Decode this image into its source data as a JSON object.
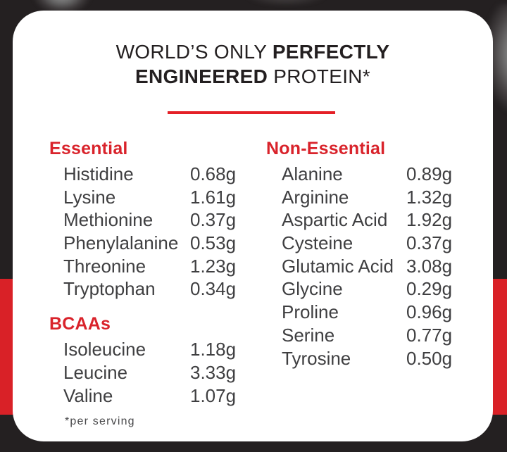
{
  "card": {
    "title": {
      "line1_regular": "WORLD’S ONLY ",
      "line1_bold": "PERFECTLY",
      "line2_bold": "ENGINEERED",
      "line2_regular": " PROTEIN*"
    },
    "sections": {
      "essential": {
        "heading": "Essential",
        "items": [
          {
            "name": "Histidine",
            "value": "0.68g"
          },
          {
            "name": "Lysine",
            "value": "1.61g"
          },
          {
            "name": "Methionine",
            "value": "0.37g"
          },
          {
            "name": "Phenylalanine",
            "value": "0.53g"
          },
          {
            "name": "Threonine",
            "value": "1.23g"
          },
          {
            "name": "Tryptophan",
            "value": "0.34g"
          }
        ]
      },
      "bcaas": {
        "heading": "BCAAs",
        "items": [
          {
            "name": "Isoleucine",
            "value": "1.18g"
          },
          {
            "name": "Leucine",
            "value": "3.33g"
          },
          {
            "name": "Valine",
            "value": "1.07g"
          }
        ]
      },
      "non_essential": {
        "heading": "Non-Essential",
        "items": [
          {
            "name": "Alanine",
            "value": "0.89g"
          },
          {
            "name": "Arginine",
            "value": "1.32g"
          },
          {
            "name": "Aspartic Acid",
            "value": "1.92g"
          },
          {
            "name": "Cysteine",
            "value": "0.37g"
          },
          {
            "name": "Glutamic Acid",
            "value": "3.08g"
          },
          {
            "name": "Glycine",
            "value": "0.29g"
          },
          {
            "name": "Proline",
            "value": "0.96g"
          },
          {
            "name": "Serine",
            "value": "0.77g"
          },
          {
            "name": "Tyrosine",
            "value": "0.50g"
          }
        ]
      }
    },
    "footnote": "*per serving"
  },
  "colors": {
    "accent_red_band": "#D92127",
    "divider_red": "#E42027",
    "heading_red": "#D9232B",
    "background_charcoal": "#232021",
    "headline_black": "#231F20",
    "body_text_gray": "#3F3F41",
    "card_white": "#FFFFFF"
  }
}
